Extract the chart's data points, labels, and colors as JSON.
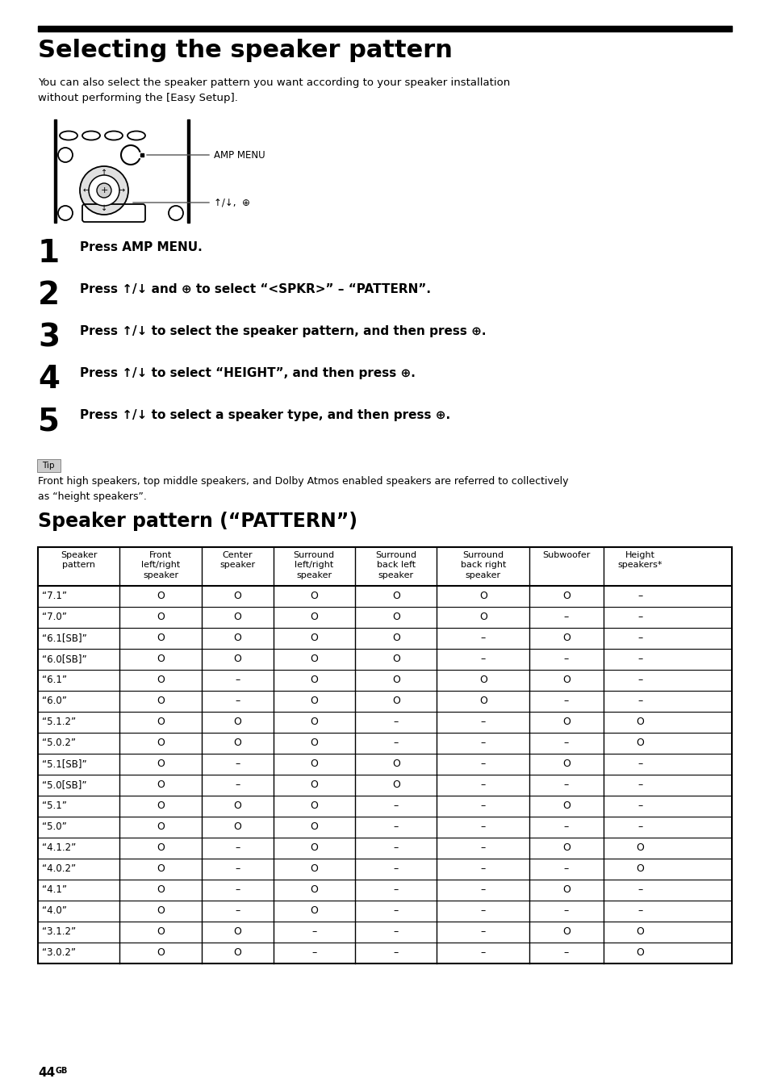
{
  "title": "Selecting the speaker pattern",
  "intro_text": "You can also select the speaker pattern you want according to your speaker installation\nwithout performing the [Easy Setup].",
  "steps": [
    {
      "num": "1",
      "text": "Press AMP MENU."
    },
    {
      "num": "2",
      "text": "Press ↑/↓ and ⊕ to select “<SPKR>” – “PATTERN”."
    },
    {
      "num": "3",
      "text": "Press ↑/↓ to select the speaker pattern, and then press ⊕."
    },
    {
      "num": "4",
      "text": "Press ↑/↓ to select “HEIGHT”, and then press ⊕."
    },
    {
      "num": "5",
      "text": "Press ↑/↓ to select a speaker type, and then press ⊕."
    }
  ],
  "tip_label": "Tip",
  "tip_text": "Front high speakers, top middle speakers, and Dolby Atmos enabled speakers are referred to collectively\nas “height speakers”.",
  "section2_title": "Speaker pattern (“PATTERN”)",
  "table_headers": [
    "Speaker\npattern",
    "Front\nleft/right\nspeaker",
    "Center\nspeaker",
    "Surround\nleft/right\nspeaker",
    "Surround\nback left\nspeaker",
    "Surround\nback right\nspeaker",
    "Subwoofer",
    "Height\nspeakers*"
  ],
  "table_rows": [
    [
      "“7.1”",
      "O",
      "O",
      "O",
      "O",
      "O",
      "O",
      "–"
    ],
    [
      "“7.0”",
      "O",
      "O",
      "O",
      "O",
      "O",
      "–",
      "–"
    ],
    [
      "“6.1[SB]”",
      "O",
      "O",
      "O",
      "O",
      "–",
      "O",
      "–"
    ],
    [
      "“6.0[SB]”",
      "O",
      "O",
      "O",
      "O",
      "–",
      "–",
      "–"
    ],
    [
      "“6.1”",
      "O",
      "–",
      "O",
      "O",
      "O",
      "O",
      "–"
    ],
    [
      "“6.0”",
      "O",
      "–",
      "O",
      "O",
      "O",
      "–",
      "–"
    ],
    [
      "“5.1.2”",
      "O",
      "O",
      "O",
      "–",
      "–",
      "O",
      "O"
    ],
    [
      "“5.0.2”",
      "O",
      "O",
      "O",
      "–",
      "–",
      "–",
      "O"
    ],
    [
      "“5.1[SB]”",
      "O",
      "–",
      "O",
      "O",
      "–",
      "O",
      "–"
    ],
    [
      "“5.0[SB]”",
      "O",
      "–",
      "O",
      "O",
      "–",
      "–",
      "–"
    ],
    [
      "“5.1”",
      "O",
      "O",
      "O",
      "–",
      "–",
      "O",
      "–"
    ],
    [
      "“5.0”",
      "O",
      "O",
      "O",
      "–",
      "–",
      "–",
      "–"
    ],
    [
      "“4.1.2”",
      "O",
      "–",
      "O",
      "–",
      "–",
      "O",
      "O"
    ],
    [
      "“4.0.2”",
      "O",
      "–",
      "O",
      "–",
      "–",
      "–",
      "O"
    ],
    [
      "“4.1”",
      "O",
      "–",
      "O",
      "–",
      "–",
      "O",
      "–"
    ],
    [
      "“4.0”",
      "O",
      "–",
      "O",
      "–",
      "–",
      "–",
      "–"
    ],
    [
      "“3.1.2”",
      "O",
      "O",
      "–",
      "–",
      "–",
      "O",
      "O"
    ],
    [
      "“3.0.2”",
      "O",
      "O",
      "–",
      "–",
      "–",
      "–",
      "O"
    ]
  ],
  "page_num": "44",
  "bg_color": "#ffffff",
  "text_color": "#000000",
  "amp_menu_label": "AMP MENU",
  "arrow_label": "↑/↓,  ⊕"
}
